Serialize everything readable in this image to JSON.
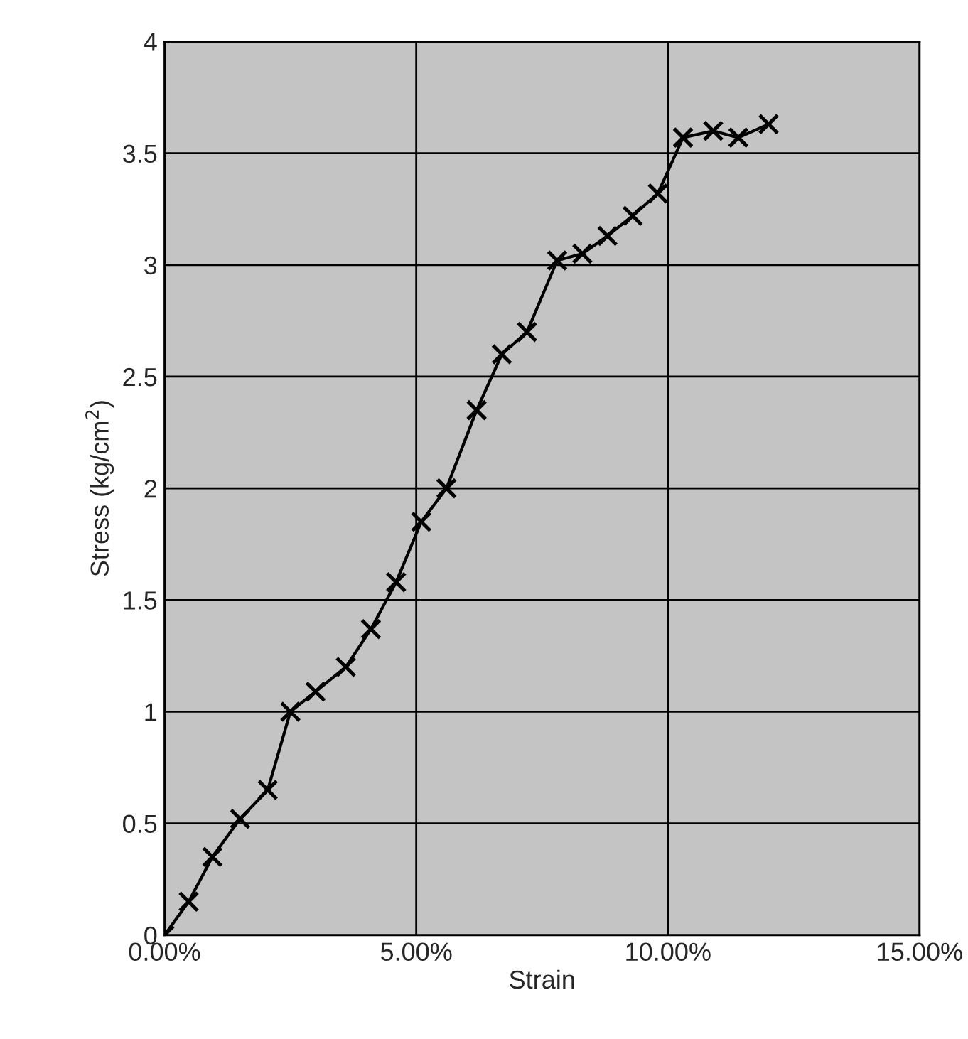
{
  "chart_data": {
    "type": "line",
    "xlabel": "Strain",
    "ylabel": "Stress (kg/cm$^{2}$)",
    "x": [
      0,
      0.48,
      0.95,
      1.5,
      2.05,
      2.5,
      3.0,
      3.6,
      4.1,
      4.6,
      5.1,
      5.6,
      6.2,
      6.7,
      7.2,
      7.8,
      8.3,
      8.8,
      9.3,
      9.8,
      10.3,
      10.9,
      11.4,
      12.0
    ],
    "series": [
      {
        "color": "#000000",
        "values": [
          0,
          0.15,
          0.35,
          0.52,
          0.65,
          1.0,
          1.09,
          1.2,
          1.37,
          1.58,
          1.85,
          2.0,
          2.35,
          2.6,
          2.7,
          3.02,
          3.05,
          3.13,
          3.22,
          3.32,
          3.57,
          3.6,
          3.57,
          3.63
        ]
      }
    ],
    "xlim": [
      0,
      15
    ],
    "xticks": [
      {
        "value": 0,
        "label": "0.00%"
      },
      {
        "value": 5,
        "label": "5.00%"
      },
      {
        "value": 10,
        "label": "10.00%"
      },
      {
        "value": 15,
        "label": "15.00%"
      }
    ],
    "ylim": [
      0,
      4
    ],
    "yticks": [
      0,
      0.5,
      1,
      1.5,
      2,
      2.5,
      3,
      3.5,
      4
    ],
    "grid": true,
    "marker": "cross",
    "line_style": "solid",
    "legend": false
  }
}
